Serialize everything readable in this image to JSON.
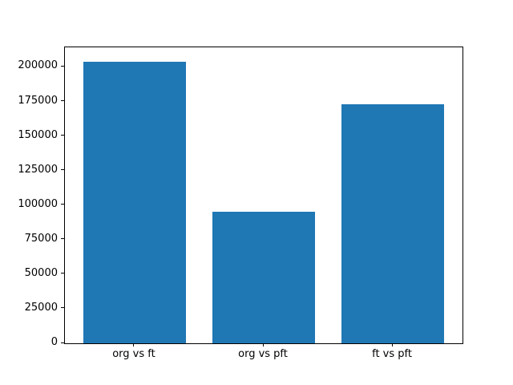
{
  "figure": {
    "background": "#ffffff"
  },
  "chart_data": {
    "type": "bar",
    "title": "",
    "xlabel": "",
    "ylabel": "",
    "categories": [
      "org vs ft",
      "org vs pft",
      "ft vs pft"
    ],
    "values": [
      204000,
      95000,
      173000
    ],
    "yticks": [
      0,
      25000,
      50000,
      75000,
      100000,
      125000,
      150000,
      175000,
      200000
    ],
    "ylim": [
      0,
      214200
    ],
    "xlim": [
      -0.54,
      2.54
    ],
    "bar_rel_width": 0.8,
    "bar_color": "#1f77b4",
    "axis_color": "#000000",
    "tick_label_color": "#000000",
    "grid": false,
    "legend": "none"
  }
}
